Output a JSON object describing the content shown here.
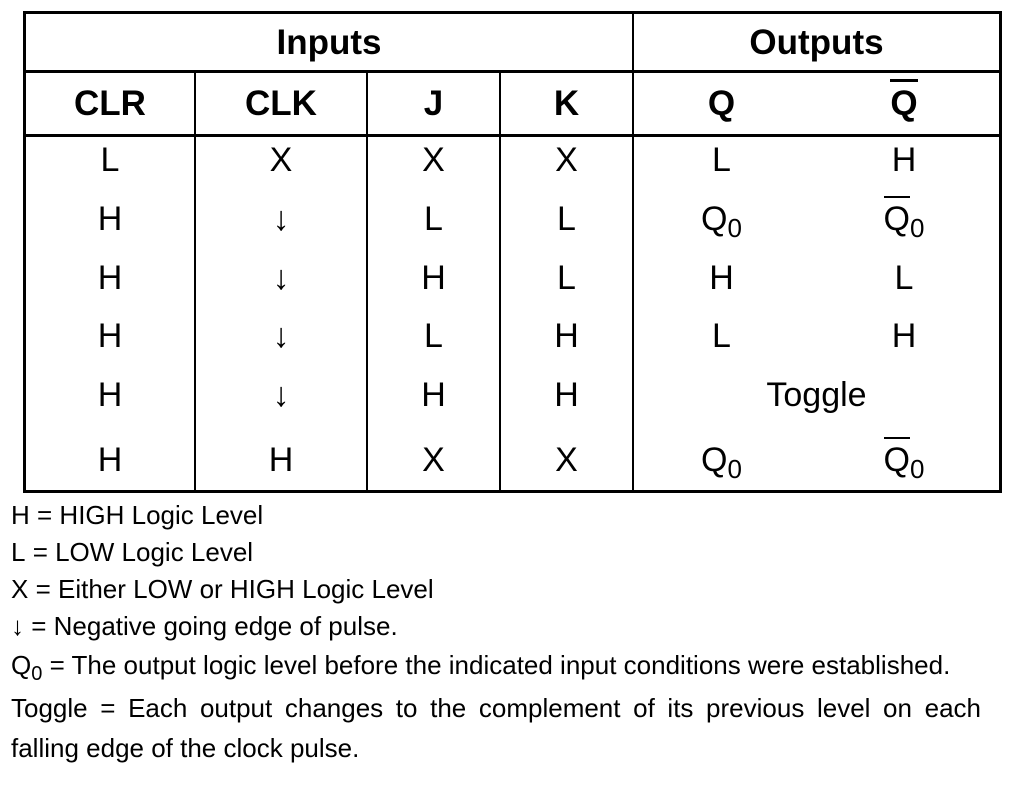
{
  "groups": {
    "inputs": "Inputs",
    "outputs": "Outputs"
  },
  "columns": {
    "clr": "CLR",
    "clk": "CLK",
    "j": "J",
    "k": "K",
    "q": "Q",
    "q_bar": "Q"
  },
  "rows": [
    {
      "clr": "L",
      "clk": "X",
      "j": "X",
      "k": "X",
      "q": "L",
      "q_bar": "H"
    },
    {
      "clr": "H",
      "clk": "↓",
      "j": "L",
      "k": "L",
      "q_main": "Q",
      "q_sub": "0",
      "q_bar_main": "Q",
      "q_bar_sub": "0"
    },
    {
      "clr": "H",
      "clk": "↓",
      "j": "H",
      "k": "L",
      "q": "H",
      "q_bar": "L"
    },
    {
      "clr": "H",
      "clk": "↓",
      "j": "L",
      "k": "H",
      "q": "L",
      "q_bar": "H"
    },
    {
      "clr": "H",
      "clk": "↓",
      "j": "H",
      "k": "H",
      "outputs_merged": "Toggle"
    },
    {
      "clr": "H",
      "clk": "H",
      "j": "X",
      "k": "X",
      "q_main": "Q",
      "q_sub": "0",
      "q_bar_main": "Q",
      "q_bar_sub": "0"
    }
  ],
  "notes": {
    "h": {
      "symbol": "H",
      "text": " = HIGH Logic Level"
    },
    "l": {
      "symbol": "L",
      "text": " = LOW Logic Level"
    },
    "x": {
      "symbol": "X",
      "text": " = Either LOW or HIGH Logic Level"
    },
    "arrow": {
      "symbol": "↓",
      "text": " = Negative going edge of pulse."
    },
    "q0": {
      "symbol_main": "Q",
      "symbol_sub": "0",
      "text": " = The output logic level before the indicated input conditions were established."
    },
    "toggle": {
      "symbol": "Toggle",
      "text": " = Each output changes to the complement of its previous level on each falling edge of the clock pulse."
    }
  }
}
